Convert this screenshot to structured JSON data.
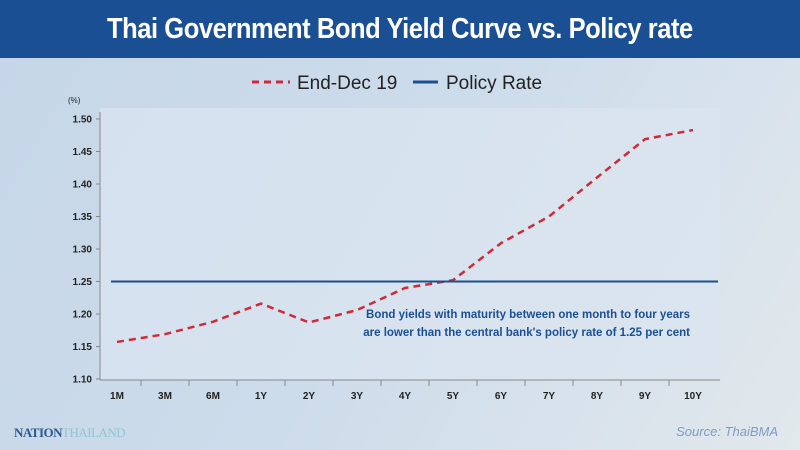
{
  "title": "Thai Government Bond Yield Curve vs. Policy rate",
  "chart_data": {
    "type": "line",
    "title": "Thai Government Bond Yield Curve vs. Policy rate",
    "ylabel": "(%)",
    "ylim": [
      1.1,
      1.5
    ],
    "yticks": [
      "1.10",
      "1.15",
      "1.20",
      "1.25",
      "1.30",
      "1.35",
      "1.40",
      "1.45",
      "1.50"
    ],
    "categories": [
      "1M",
      "3M",
      "6M",
      "1Y",
      "2Y",
      "3Y",
      "4Y",
      "5Y",
      "6Y",
      "7Y",
      "8Y",
      "9Y",
      "10Y"
    ],
    "legend_position": "top",
    "series": [
      {
        "name": "End-Dec 19",
        "style": "dashed",
        "color": "#d0293a",
        "values": [
          1.157,
          1.169,
          1.188,
          1.216,
          1.187,
          1.206,
          1.24,
          1.252,
          1.309,
          1.35,
          1.41,
          1.469,
          1.483
        ]
      },
      {
        "name": "Policy Rate",
        "style": "solid",
        "color": "#1b4f93",
        "values": [
          1.25,
          1.25,
          1.25,
          1.25,
          1.25,
          1.25,
          1.25,
          1.25,
          1.25,
          1.25,
          1.25,
          1.25,
          1.25
        ]
      }
    ],
    "annotation": [
      "Bond yields with maturity between one month to four years",
      "are lower than the  central bank's policy rate of 1.25 per cent"
    ]
  },
  "logo": {
    "main": "NATION",
    "sub": "THAILAND"
  },
  "source": "Source: ThaiBMA"
}
